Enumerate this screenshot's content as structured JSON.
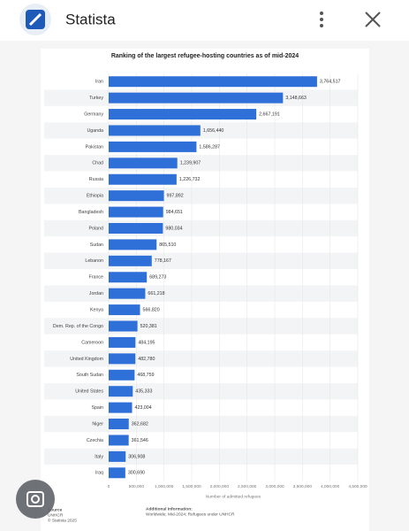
{
  "header": {
    "title": "Statista"
  },
  "chart_data": {
    "type": "bar",
    "orientation": "horizontal",
    "title": "Ranking of the largest refugee-hosting countries as of mid-2024",
    "x_label": "Number of admitted refugees",
    "categories": [
      "Iran",
      "Turkey",
      "Germany",
      "Uganda",
      "Pakistan",
      "Chad",
      "Russia",
      "Ethiopia",
      "Bangladesh",
      "Poland",
      "Sudan",
      "Lebanon",
      "France",
      "Jordan",
      "Kenya",
      "Dem. Rep. of the Congo",
      "Cameroon",
      "United Kingdom",
      "South Sudan",
      "United States",
      "Spain",
      "Niger",
      "Czechia",
      "Italy",
      "Iraq"
    ],
    "values": [
      3764517,
      3148663,
      2667191,
      1656440,
      1586287,
      1239907,
      1226732,
      997892,
      984651,
      980034,
      865510,
      778167,
      689273,
      661218,
      566820,
      520381,
      484195,
      482780,
      468759,
      435333,
      423004,
      362682,
      361546,
      306908,
      300690
    ],
    "value_labels": [
      "3,764,517",
      "3,148,663",
      "2,667,191",
      "1,656,440",
      "1,586,287",
      "1,239,907",
      "1,226,732",
      "997,892",
      "984,651",
      "980,034",
      "865,510",
      "778,167",
      "689,273",
      "661,218",
      "566,820",
      "520,381",
      "484,195",
      "482,780",
      "468,759",
      "435,333",
      "423,004",
      "362,682",
      "361,546",
      "306,908",
      "300,690"
    ],
    "color": "#2f6fd8",
    "xlim": [
      0,
      4500000
    ],
    "xticks": [
      0,
      {
        "value": 500000,
        "label": "500,000"
      },
      {
        "value": 1000000,
        "label": "1,000,000"
      },
      {
        "value": 1500000,
        "label": "1,500,000"
      },
      {
        "value": 2000000,
        "label": "2,000,000"
      },
      {
        "value": 2500000,
        "label": "2,500,000"
      },
      {
        "value": 3000000,
        "label": "3,000,000"
      },
      {
        "value": 3500000,
        "label": "3,500,000"
      },
      {
        "value": 4000000,
        "label": "4,000,000"
      },
      {
        "value": 4500000,
        "label": "4,500,000"
      }
    ],
    "grid": true
  },
  "footer": {
    "source_label": "Source",
    "source": "UNHCR",
    "copyright": "© Statista 2025",
    "info_label": "Additional Information:",
    "info": "Worldwide; Mid-2024; Refugees under UNHCR"
  }
}
